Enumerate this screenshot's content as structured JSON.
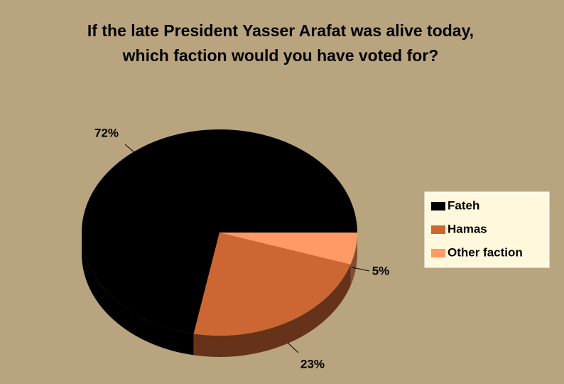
{
  "chart_data": {
    "type": "pie3d",
    "title": [
      "If the late President Yasser Arafat was alive today,",
      "which faction would you have voted for?"
    ],
    "categories": [
      "Fateh",
      "Hamas",
      "Other faction"
    ],
    "values": [
      72,
      23,
      5
    ],
    "value_labels": [
      "72%",
      "23%",
      "5%"
    ],
    "colors": [
      "#000000",
      "#cc6633",
      "#ff9966"
    ],
    "legend": "right"
  }
}
